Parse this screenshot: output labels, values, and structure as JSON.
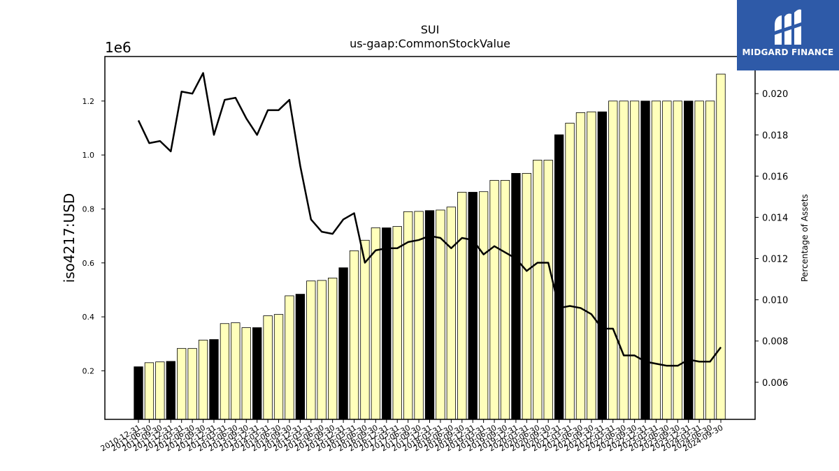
{
  "chart_data": {
    "type": "bar",
    "title": "SUI",
    "subtitle": "us-gaap:CommonStockValue",
    "ylabel": "iso4217:USD",
    "y2label": "Percentage of Assets",
    "offset_text": "1e6",
    "ylim": [
      20000,
      1365000
    ],
    "y2lim": [
      0.0042,
      0.0218
    ],
    "yticks": [
      {
        "v": 200000,
        "label": "0.2"
      },
      {
        "v": 400000,
        "label": "0.4"
      },
      {
        "v": 600000,
        "label": "0.6"
      },
      {
        "v": 800000,
        "label": "0.8"
      },
      {
        "v": 1000000,
        "label": "1.0"
      },
      {
        "v": 1200000,
        "label": "1.2"
      }
    ],
    "y2ticks": [
      {
        "v": 0.006,
        "label": "0.006"
      },
      {
        "v": 0.008,
        "label": "0.008"
      },
      {
        "v": 0.01,
        "label": "0.010"
      },
      {
        "v": 0.012,
        "label": "0.012"
      },
      {
        "v": 0.014,
        "label": "0.014"
      },
      {
        "v": 0.016,
        "label": "0.016"
      },
      {
        "v": 0.018,
        "label": "0.018"
      },
      {
        "v": 0.02,
        "label": "0.020"
      }
    ],
    "categories": [
      "2010-12-31",
      "2011-06-30",
      "2011-09-30",
      "2011-12-31",
      "2012-03-31",
      "2012-06-30",
      "2012-09-30",
      "2012-12-31",
      "2013-03-31",
      "2013-06-30",
      "2013-09-30",
      "2013-12-31",
      "2014-03-31",
      "2014-06-30",
      "2014-09-30",
      "2014-12-31",
      "2015-03-31",
      "2015-06-30",
      "2015-09-30",
      "2015-12-31",
      "2016-03-31",
      "2016-06-30",
      "2016-09-30",
      "2016-12-31",
      "2017-03-31",
      "2017-06-30",
      "2017-09-30",
      "2017-12-31",
      "2018-03-31",
      "2018-06-30",
      "2018-09-30",
      "2018-12-31",
      "2019-03-31",
      "2019-06-30",
      "2019-09-30",
      "2019-12-31",
      "2020-03-31",
      "2020-06-30",
      "2020-09-30",
      "2020-12-31",
      "2021-03-31",
      "2021-06-30",
      "2021-09-30",
      "2021-12-31",
      "2022-03-31",
      "2022-06-30",
      "2022-09-30",
      "2022-12-31",
      "2023-03-31",
      "2023-06-30",
      "2023-09-30",
      "2023-12-31",
      "2024-03-31",
      "2024-06-30",
      "2024-09-30"
    ],
    "series": [
      {
        "type": "bar",
        "values": [
          215000,
          230000,
          233000,
          235000,
          283000,
          283000,
          314000,
          316000,
          375000,
          378000,
          360000,
          360000,
          404000,
          409000,
          478000,
          484000,
          533000,
          535000,
          544000,
          582000,
          645000,
          684000,
          730000,
          730000,
          735000,
          790000,
          791000,
          794000,
          796000,
          807000,
          862000,
          862000,
          864000,
          906000,
          906000,
          932000,
          932000,
          981000,
          981000,
          1075000,
          1118000,
          1157000,
          1160000,
          1160000,
          1200000,
          1200000,
          1200000,
          1200000,
          1200000,
          1200000,
          1200000,
          1200000,
          1200000,
          1200000,
          1300000
        ],
        "highlight": [
          true,
          false,
          false,
          true,
          false,
          false,
          false,
          true,
          false,
          false,
          false,
          true,
          false,
          false,
          false,
          true,
          false,
          false,
          false,
          true,
          false,
          false,
          false,
          true,
          false,
          false,
          false,
          true,
          false,
          false,
          false,
          true,
          false,
          false,
          false,
          true,
          false,
          false,
          false,
          true,
          false,
          false,
          false,
          true,
          false,
          false,
          false,
          true,
          false,
          false,
          false,
          true,
          false,
          false,
          false
        ]
      },
      {
        "type": "line",
        "axis": "right",
        "values": [
          0.0187,
          0.0176,
          0.0177,
          0.0172,
          0.0201,
          0.02,
          0.021,
          0.018,
          0.0197,
          0.0198,
          0.0188,
          0.018,
          0.0192,
          0.0192,
          0.0197,
          0.0165,
          0.0139,
          0.0133,
          0.0132,
          0.0139,
          0.0142,
          0.0118,
          0.0124,
          0.0125,
          0.0125,
          0.0128,
          0.0129,
          0.0131,
          0.013,
          0.0125,
          0.013,
          0.0129,
          0.0122,
          0.0126,
          0.0123,
          0.012,
          0.0114,
          0.0118,
          0.0118,
          0.0096,
          0.0097,
          0.0096,
          0.0093,
          0.0086,
          0.0086,
          0.0073,
          0.0073,
          0.007,
          0.0069,
          0.0068,
          0.0068,
          0.0071,
          0.007,
          0.007,
          0.0077
        ]
      }
    ],
    "colors": {
      "bar_fill": "#ffffbb",
      "bar_highlight": "#000000",
      "bar_edge": "#000000",
      "line": "#000000"
    }
  },
  "logo": {
    "text": "MIDGARD FINANCE",
    "color": "#2e5aa8"
  }
}
